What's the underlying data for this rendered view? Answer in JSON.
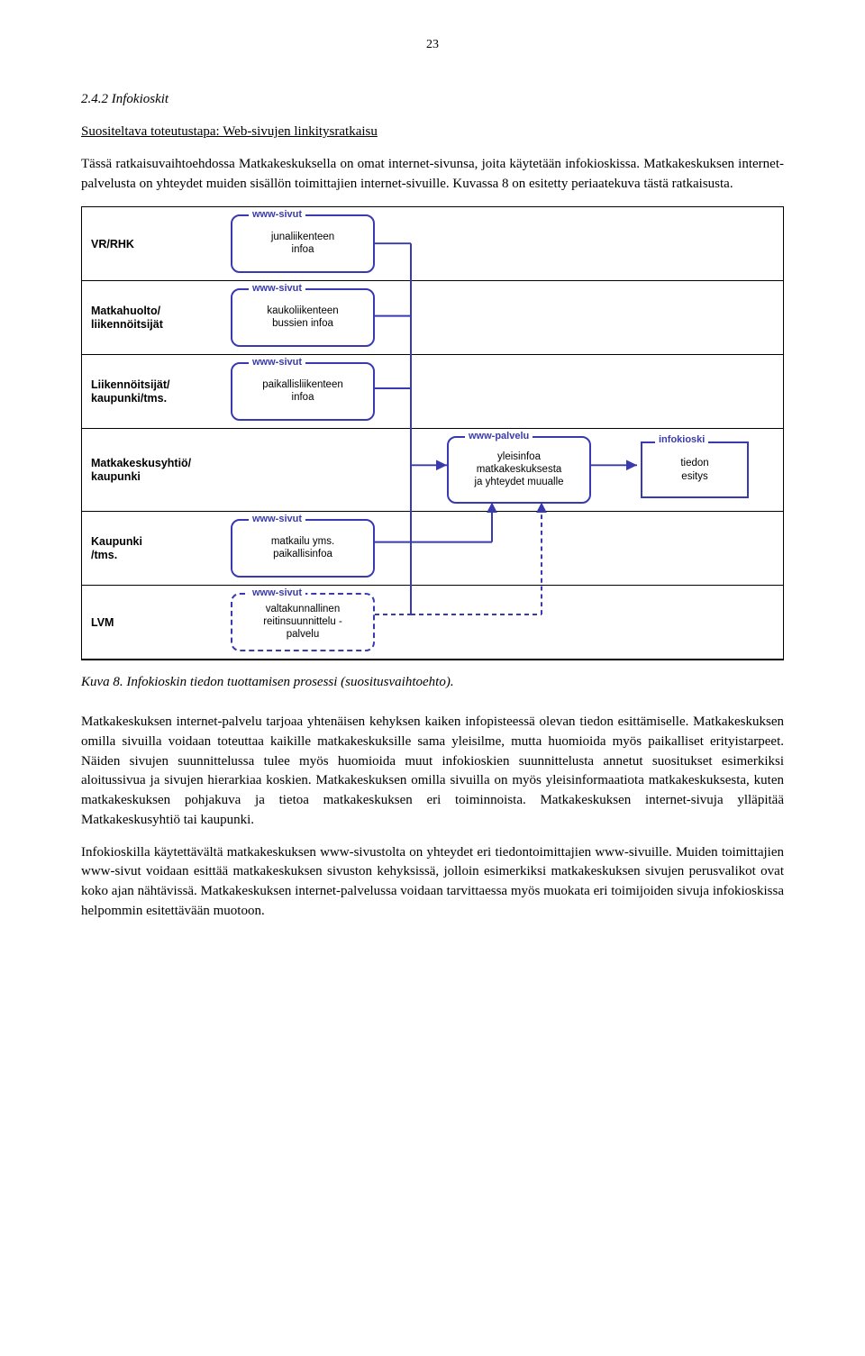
{
  "page_number": "23",
  "heading": "2.4.2  Infokioskit",
  "subheading": "Suositeltava toteutustapa: Web-sivujen linkitysratkaisu",
  "intro_p1": "Tässä ratkaisuvaihtoehdossa Matkakeskuksella on omat internet-sivunsa, joita käytetään infokioskissa. Matkakeskuksen internet-palvelusta on yhteydet muiden sisällön toimittajien internet-sivuille. Kuvassa 8 on esitetty periaatekuva tästä ratkaisusta.",
  "caption": "Kuva 8. Infokioskin tiedon tuottamisen prosessi (suositusvaihtoehto).",
  "para2": "Matkakeskuksen internet-palvelu tarjoaa yhtenäisen kehyksen kaiken infopisteessä olevan tiedon esittämiselle. Matkakeskuksen omilla sivuilla voidaan toteuttaa kaikille matkakeskuksille sama yleisilme, mutta huomioida myös paikalliset erityistarpeet. Näiden sivujen suunnittelussa tulee myös huomioida muut infokioskien suunnittelusta annetut suositukset esimerkiksi aloitussivua ja sivujen hierarkiaa koskien. Matkakeskuksen omilla sivuilla on myös yleisinformaatiota matkakeskuksesta, kuten matkakeskuksen pohjakuva ja tietoa matkakeskuksen eri toiminnoista. Matkakeskuksen internet-sivuja ylläpitää Matkakeskusyhtiö tai kaupunki.",
  "para3": "Infokioskilla käytettävältä matkakeskuksen www-sivustolta on yhteydet eri tiedontoimittajien www-sivuille. Muiden toimittajien www-sivut voidaan esittää matkakeskuksen sivuston kehyksissä, jolloin esimerkiksi matkakeskuksen sivujen perusvalikot ovat koko ajan nähtävissä. Matkakeskuksen internet-palvelussa voidaan tarvittaessa myös muokata eri toimijoiden sivuja infokioskissa helpommin esitettävään muotoon.",
  "diagram": {
    "accent": "#3a3ab0",
    "www_tag": "www-sivut",
    "palvelu_tag": "www-palvelu",
    "kiosk_tag": "infokioski",
    "rows": [
      {
        "label": "VR/RHK",
        "box_l1": "junaliikenteen",
        "box_l2": "infoa"
      },
      {
        "label": "Matkahuolto/\nliikennöitsijät",
        "box_l1": "kaukoliikenteen",
        "box_l2": "bussien infoa"
      },
      {
        "label": "Liikennöitsijät/\nkaupunki/tms.",
        "box_l1": "paikallisliikenteen",
        "box_l2": "infoa"
      },
      {
        "label": "Matkakeskusyhtiö/\nkaupunki",
        "palvelu_l1": "yleisinfoa",
        "palvelu_l2": "matkakeskuksesta",
        "palvelu_l3": "ja yhteydet muualle",
        "kiosk_l1": "tiedon",
        "kiosk_l2": "esitys"
      },
      {
        "label": "Kaupunki\n/tms.",
        "box_l1": "matkailu yms.",
        "box_l2": "paikallisinfoa"
      },
      {
        "label": "LVM",
        "box_l1": "valtakunnallinen",
        "box_l2": "reitinsuunnittelu -",
        "box_l3": "palvelu"
      }
    ]
  }
}
